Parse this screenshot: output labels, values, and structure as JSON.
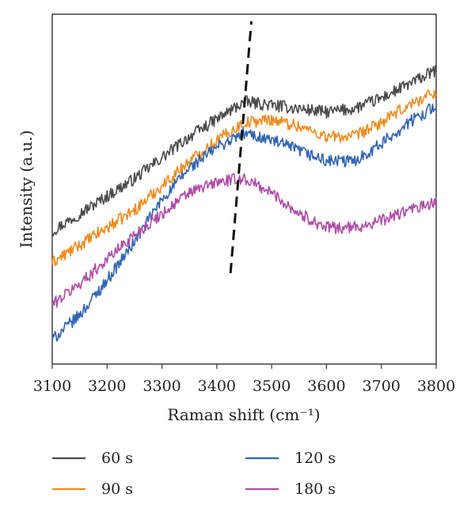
{
  "chart_data": {
    "type": "line",
    "xlabel": "Raman shift (cm⁻¹)",
    "ylabel": "Intensity (a.u.)",
    "xlim": [
      3100,
      3800
    ],
    "ylim": [
      0,
      1
    ],
    "x_ticks": [
      "3100",
      "3200",
      "3300",
      "3400",
      "3500",
      "3600",
      "3700",
      "3800"
    ],
    "y_ticks_shown": false,
    "grid": false,
    "legend_position": "bottom",
    "x": [
      3100,
      3150,
      3200,
      3250,
      3300,
      3350,
      3400,
      3450,
      3500,
      3550,
      3600,
      3650,
      3700,
      3750,
      3800
    ],
    "series": [
      {
        "name": "60 s",
        "color": "#4a4a4a",
        "values": [
          0.38,
          0.43,
          0.48,
          0.53,
          0.59,
          0.65,
          0.7,
          0.75,
          0.74,
          0.73,
          0.72,
          0.73,
          0.76,
          0.8,
          0.84
        ]
      },
      {
        "name": "90 s",
        "color": "#f08a1c",
        "values": [
          0.29,
          0.34,
          0.39,
          0.44,
          0.51,
          0.58,
          0.64,
          0.69,
          0.7,
          0.68,
          0.65,
          0.65,
          0.69,
          0.74,
          0.78
        ]
      },
      {
        "name": "120 s",
        "color": "#2f64b2",
        "values": [
          0.07,
          0.14,
          0.24,
          0.35,
          0.47,
          0.56,
          0.62,
          0.66,
          0.64,
          0.61,
          0.58,
          0.58,
          0.63,
          0.69,
          0.74
        ]
      },
      {
        "name": "180 s",
        "color": "#b04aa8",
        "values": [
          0.17,
          0.23,
          0.3,
          0.37,
          0.43,
          0.49,
          0.52,
          0.53,
          0.49,
          0.43,
          0.39,
          0.39,
          0.41,
          0.44,
          0.46
        ]
      }
    ],
    "annotations": [
      {
        "type": "dashed-line",
        "color": "#111111",
        "x_start": 3425,
        "y_start": 0.26,
        "x_end": 3463,
        "y_end": 0.98
      }
    ]
  }
}
